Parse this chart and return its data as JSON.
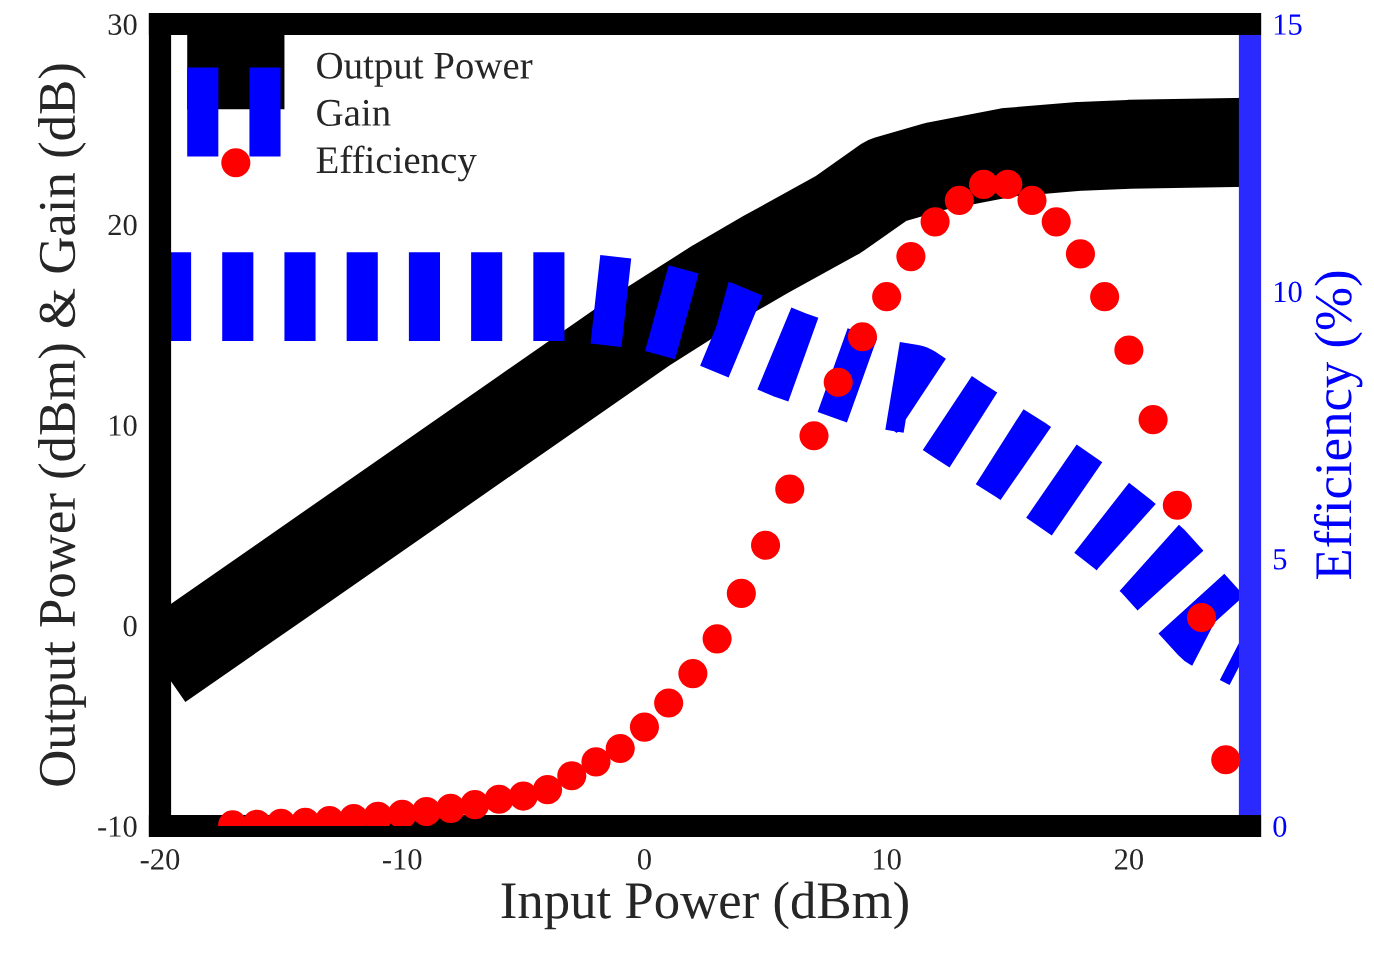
{
  "chart_data": {
    "type": "line",
    "xlabel": "Input Power (dBm)",
    "ylabel": "Output Power (dBm) & Gain (dB)",
    "y2label": "Efficiency (%)",
    "xlim": [
      -20,
      25
    ],
    "xticks": [
      -20,
      -10,
      0,
      10,
      20
    ],
    "ylim": [
      -10,
      30
    ],
    "yticks": [
      -10,
      0,
      10,
      20,
      30
    ],
    "y2lim": [
      0,
      15
    ],
    "y2ticks": [
      0,
      5,
      10,
      15
    ],
    "legend": "top left",
    "series": [
      {
        "name": "Output Power",
        "color": "#000000",
        "line_style": "solid",
        "marker": "none",
        "x": [
          -20,
          -15,
          -10,
          -5,
          0,
          3,
          5,
          8,
          10,
          12,
          15,
          18,
          20,
          25
        ],
        "values": [
          -2,
          2.2,
          6.4,
          10.6,
          14.8,
          17.1,
          18.5,
          20.5,
          22.2,
          22.9,
          23.6,
          23.9,
          24,
          24.1
        ]
      },
      {
        "name": "Gain",
        "color": "#0000ff",
        "line_style": "dashed",
        "marker": "none",
        "x": [
          -20,
          -10,
          -3,
          0,
          3,
          6,
          9,
          11,
          13,
          15.6,
          18,
          19.8,
          21,
          23.4,
          25
        ],
        "values": [
          16.4,
          16.4,
          16.4,
          16,
          15,
          13.5,
          12.2,
          11.8,
          10.2,
          8.2,
          6.2,
          4.5,
          3.2,
          0,
          -1
        ]
      },
      {
        "name": "Efficiency",
        "type": "scatter",
        "axis": "y2",
        "color": "#ff0000",
        "marker": "circle",
        "x": [
          -17,
          -16,
          -15,
          -14,
          -13,
          -12,
          -11,
          -10,
          -9,
          -8,
          -7,
          -6,
          -5,
          -4,
          -3,
          -2,
          -1,
          0,
          1,
          2,
          3,
          4,
          5,
          6,
          7,
          8,
          9,
          10,
          11,
          12,
          13,
          14,
          15,
          16,
          17,
          18,
          19,
          20,
          21,
          22,
          23,
          24
        ],
        "values": [
          0.02,
          0.03,
          0.05,
          0.07,
          0.1,
          0.14,
          0.18,
          0.22,
          0.27,
          0.33,
          0.4,
          0.5,
          0.56,
          0.68,
          0.94,
          1.2,
          1.45,
          1.85,
          2.3,
          2.85,
          3.5,
          4.35,
          5.25,
          6.3,
          7.3,
          8.3,
          9.15,
          9.9,
          10.65,
          11.3,
          11.7,
          12,
          12,
          11.7,
          11.3,
          10.7,
          9.9,
          8.9,
          7.6,
          6,
          3.9,
          1.24
        ]
      }
    ]
  }
}
